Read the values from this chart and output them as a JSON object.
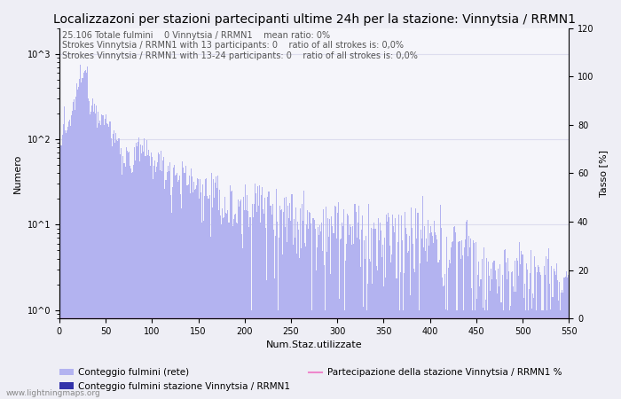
{
  "title": "Localizzazoni per stazioni partecipanti ultime 24h per la stazione: Vinnytsia / RRMN1",
  "annotation_lines": [
    "25.106 Totale fulmini    0 Vinnytsia / RRMN1    mean ratio: 0%",
    "Strokes Vinnytsia / RRMN1 with 13 participants: 0    ratio of all strokes is: 0,0%",
    "Strokes Vinnytsia / RRMN1 with 13-24 participants: 0    ratio of all strokes is: 0,0%"
  ],
  "xlabel": "Num.Staz.utilizzate",
  "ylabel_left": "Numero",
  "ylabel_right": "Tasso [%]",
  "xlim": [
    0,
    550
  ],
  "ylim_right": [
    0,
    120
  ],
  "bar_color_light": "#b3b3f0",
  "bar_color_dark": "#3333aa",
  "line_color": "#ee88cc",
  "background_color": "#eeeef5",
  "plot_bg_color": "#f5f5fa",
  "grid_color": "#ddddee",
  "legend_entries": [
    "Conteggio fulmini (rete)",
    "Conteggio fulmini stazione Vinnytsia / RRMN1",
    "Partecipazione della stazione Vinnytsia / RRMN1 %"
  ],
  "watermark": "www.lightningmaps.org",
  "title_fontsize": 10,
  "annotation_fontsize": 7,
  "axis_fontsize": 8,
  "legend_fontsize": 7.5
}
